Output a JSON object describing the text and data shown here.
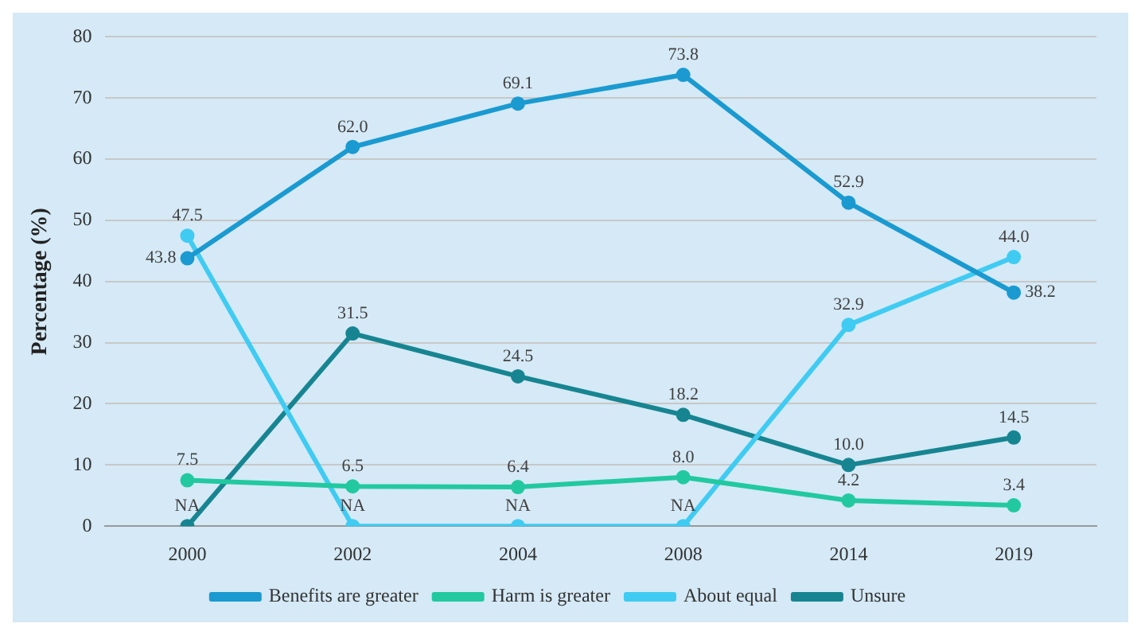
{
  "chart_data": {
    "type": "line",
    "ylabel": "Percentage (%)",
    "categories": [
      "2000",
      "2002",
      "2004",
      "2008",
      "2014",
      "2019"
    ],
    "ylim": [
      0,
      80
    ],
    "yticks": [
      0,
      10,
      20,
      30,
      40,
      50,
      60,
      70,
      80
    ],
    "grid": "y",
    "legend": "bottom",
    "marker": "circle",
    "data_labels": true,
    "series": [
      {
        "name": "Benefits are greater",
        "color": "#1a9ad0",
        "values": [
          43.8,
          62.0,
          69.1,
          73.8,
          52.9,
          38.2
        ],
        "value_labels": [
          "43.8",
          "62.0",
          "69.1",
          "73.8",
          "52.9",
          "38.2"
        ]
      },
      {
        "name": "Harm is greater",
        "color": "#22c9a0",
        "values": [
          7.5,
          6.5,
          6.4,
          8.0,
          4.2,
          3.4
        ],
        "value_labels": [
          "7.5",
          "6.5",
          "6.4",
          "8.0",
          "4.2",
          "3.4"
        ]
      },
      {
        "name": "About equal",
        "color": "#40cbf2",
        "values": [
          47.5,
          0,
          0,
          0,
          32.9,
          44.0
        ],
        "value_labels": [
          "47.5",
          "NA",
          "NA",
          "NA",
          "32.9",
          "44.0"
        ]
      },
      {
        "name": "Unsure",
        "color": "#178591",
        "values": [
          0,
          31.5,
          24.5,
          18.2,
          10.0,
          14.5
        ],
        "value_labels": [
          "NA",
          "31.5",
          "24.5",
          "18.2",
          "10.0",
          "14.5"
        ]
      }
    ]
  }
}
